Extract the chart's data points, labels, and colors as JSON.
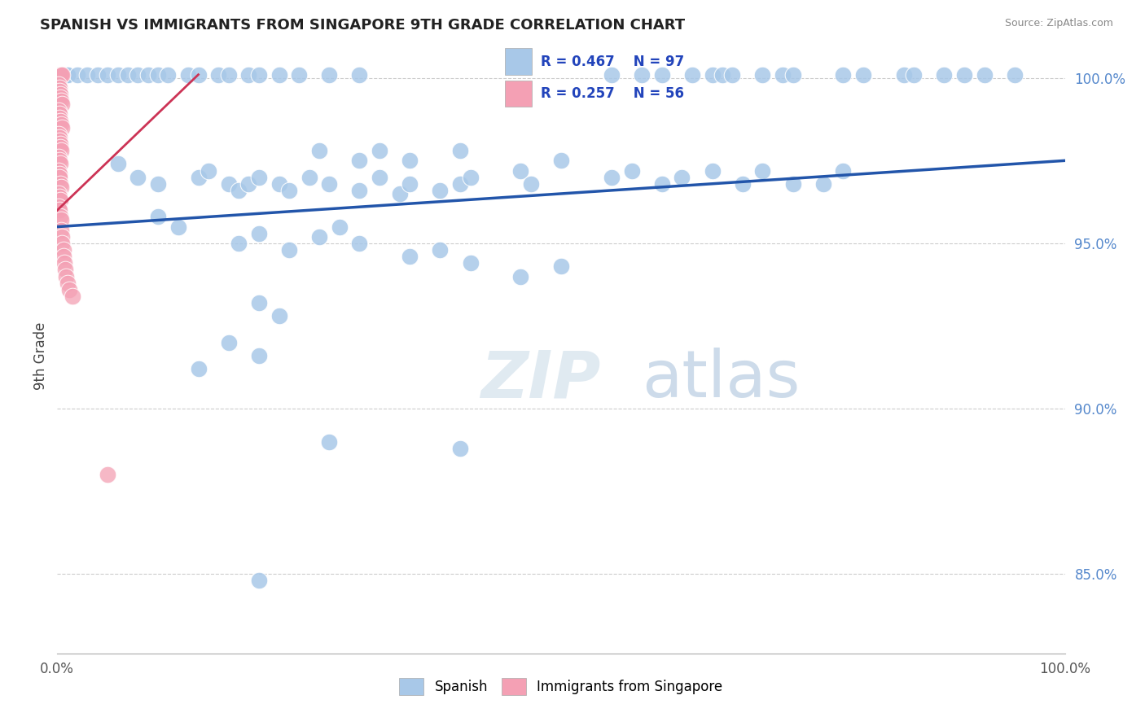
{
  "title": "SPANISH VS IMMIGRANTS FROM SINGAPORE 9TH GRADE CORRELATION CHART",
  "source": "Source: ZipAtlas.com",
  "ylabel": "9th Grade",
  "xlim": [
    0.0,
    1.0
  ],
  "ylim": [
    0.826,
    1.006
  ],
  "yticks": [
    0.85,
    0.9,
    0.95,
    1.0
  ],
  "ytick_labels": [
    "85.0%",
    "90.0%",
    "95.0%",
    "100.0%"
  ],
  "blue_r": 0.467,
  "blue_n": 97,
  "pink_r": 0.257,
  "pink_n": 56,
  "blue_color": "#a8c8e8",
  "pink_color": "#f4a0b4",
  "blue_line_color": "#2255aa",
  "pink_line_color": "#cc3355",
  "background_color": "#ffffff",
  "grid_color": "#cccccc",
  "blue_line_x0": 0.0,
  "blue_line_x1": 1.0,
  "blue_line_y0": 0.955,
  "blue_line_y1": 0.975,
  "pink_line_x0": 0.0,
  "pink_line_x1": 0.14,
  "pink_line_y0": 0.96,
  "pink_line_y1": 1.001,
  "blue_points": [
    [
      0.0,
      1.001
    ],
    [
      0.0,
      1.001
    ],
    [
      0.01,
      1.001
    ],
    [
      0.01,
      1.001
    ],
    [
      0.02,
      1.001
    ],
    [
      0.03,
      1.001
    ],
    [
      0.04,
      1.001
    ],
    [
      0.05,
      1.001
    ],
    [
      0.06,
      1.001
    ],
    [
      0.07,
      1.001
    ],
    [
      0.08,
      1.001
    ],
    [
      0.09,
      1.001
    ],
    [
      0.1,
      1.001
    ],
    [
      0.11,
      1.001
    ],
    [
      0.13,
      1.001
    ],
    [
      0.14,
      1.001
    ],
    [
      0.16,
      1.001
    ],
    [
      0.17,
      1.001
    ],
    [
      0.19,
      1.001
    ],
    [
      0.2,
      1.001
    ],
    [
      0.22,
      1.001
    ],
    [
      0.24,
      1.001
    ],
    [
      0.27,
      1.001
    ],
    [
      0.3,
      1.001
    ],
    [
      0.55,
      1.001
    ],
    [
      0.58,
      1.001
    ],
    [
      0.6,
      1.001
    ],
    [
      0.63,
      1.001
    ],
    [
      0.65,
      1.001
    ],
    [
      0.66,
      1.001
    ],
    [
      0.67,
      1.001
    ],
    [
      0.7,
      1.001
    ],
    [
      0.72,
      1.001
    ],
    [
      0.73,
      1.001
    ],
    [
      0.78,
      1.001
    ],
    [
      0.8,
      1.001
    ],
    [
      0.84,
      1.001
    ],
    [
      0.85,
      1.001
    ],
    [
      0.88,
      1.001
    ],
    [
      0.9,
      1.001
    ],
    [
      0.92,
      1.001
    ],
    [
      0.95,
      1.001
    ],
    [
      0.06,
      0.974
    ],
    [
      0.08,
      0.97
    ],
    [
      0.1,
      0.968
    ],
    [
      0.14,
      0.97
    ],
    [
      0.15,
      0.972
    ],
    [
      0.17,
      0.968
    ],
    [
      0.18,
      0.966
    ],
    [
      0.19,
      0.968
    ],
    [
      0.2,
      0.97
    ],
    [
      0.22,
      0.968
    ],
    [
      0.23,
      0.966
    ],
    [
      0.25,
      0.97
    ],
    [
      0.27,
      0.968
    ],
    [
      0.3,
      0.966
    ],
    [
      0.32,
      0.97
    ],
    [
      0.34,
      0.965
    ],
    [
      0.35,
      0.968
    ],
    [
      0.38,
      0.966
    ],
    [
      0.4,
      0.968
    ],
    [
      0.41,
      0.97
    ],
    [
      0.26,
      0.978
    ],
    [
      0.3,
      0.975
    ],
    [
      0.32,
      0.978
    ],
    [
      0.35,
      0.975
    ],
    [
      0.4,
      0.978
    ],
    [
      0.46,
      0.972
    ],
    [
      0.47,
      0.968
    ],
    [
      0.5,
      0.975
    ],
    [
      0.55,
      0.97
    ],
    [
      0.57,
      0.972
    ],
    [
      0.6,
      0.968
    ],
    [
      0.62,
      0.97
    ],
    [
      0.65,
      0.972
    ],
    [
      0.68,
      0.968
    ],
    [
      0.7,
      0.972
    ],
    [
      0.73,
      0.968
    ],
    [
      0.76,
      0.968
    ],
    [
      0.78,
      0.972
    ],
    [
      0.1,
      0.958
    ],
    [
      0.12,
      0.955
    ],
    [
      0.18,
      0.95
    ],
    [
      0.2,
      0.953
    ],
    [
      0.23,
      0.948
    ],
    [
      0.26,
      0.952
    ],
    [
      0.28,
      0.955
    ],
    [
      0.3,
      0.95
    ],
    [
      0.35,
      0.946
    ],
    [
      0.38,
      0.948
    ],
    [
      0.41,
      0.944
    ],
    [
      0.46,
      0.94
    ],
    [
      0.5,
      0.943
    ],
    [
      0.2,
      0.932
    ],
    [
      0.22,
      0.928
    ],
    [
      0.17,
      0.92
    ],
    [
      0.2,
      0.916
    ],
    [
      0.14,
      0.912
    ],
    [
      0.27,
      0.89
    ],
    [
      0.4,
      0.888
    ],
    [
      0.2,
      0.848
    ]
  ],
  "pink_points": [
    [
      0.001,
      1.001
    ],
    [
      0.001,
      1.001
    ],
    [
      0.002,
      1.001
    ],
    [
      0.002,
      1.001
    ],
    [
      0.003,
      1.001
    ],
    [
      0.003,
      1.001
    ],
    [
      0.004,
      1.001
    ],
    [
      0.004,
      1.001
    ],
    [
      0.005,
      1.001
    ],
    [
      0.001,
      0.998
    ],
    [
      0.002,
      0.997
    ],
    [
      0.002,
      0.996
    ],
    [
      0.003,
      0.995
    ],
    [
      0.003,
      0.994
    ],
    [
      0.004,
      0.993
    ],
    [
      0.005,
      0.992
    ],
    [
      0.001,
      0.99
    ],
    [
      0.002,
      0.989
    ],
    [
      0.002,
      0.988
    ],
    [
      0.003,
      0.987
    ],
    [
      0.004,
      0.986
    ],
    [
      0.005,
      0.985
    ],
    [
      0.001,
      0.983
    ],
    [
      0.002,
      0.982
    ],
    [
      0.002,
      0.981
    ],
    [
      0.003,
      0.98
    ],
    [
      0.003,
      0.979
    ],
    [
      0.004,
      0.978
    ],
    [
      0.001,
      0.976
    ],
    [
      0.002,
      0.975
    ],
    [
      0.003,
      0.974
    ],
    [
      0.001,
      0.972
    ],
    [
      0.002,
      0.971
    ],
    [
      0.002,
      0.97
    ],
    [
      0.003,
      0.968
    ],
    [
      0.004,
      0.967
    ],
    [
      0.001,
      0.965
    ],
    [
      0.002,
      0.964
    ],
    [
      0.003,
      0.963
    ],
    [
      0.001,
      0.961
    ],
    [
      0.002,
      0.96
    ],
    [
      0.003,
      0.958
    ],
    [
      0.004,
      0.957
    ],
    [
      0.004,
      0.954
    ],
    [
      0.005,
      0.952
    ],
    [
      0.005,
      0.95
    ],
    [
      0.006,
      0.948
    ],
    [
      0.006,
      0.946
    ],
    [
      0.007,
      0.944
    ],
    [
      0.008,
      0.942
    ],
    [
      0.009,
      0.94
    ],
    [
      0.01,
      0.938
    ],
    [
      0.012,
      0.936
    ],
    [
      0.015,
      0.934
    ],
    [
      0.05,
      0.88
    ]
  ]
}
